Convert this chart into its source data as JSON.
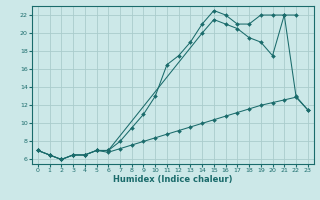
{
  "title": "",
  "xlabel": "Humidex (Indice chaleur)",
  "bg_color": "#cce8e8",
  "grid_color": "#aacccc",
  "line_color": "#1a6b6b",
  "xlim": [
    -0.5,
    23.5
  ],
  "ylim": [
    5.5,
    23
  ],
  "xticks": [
    0,
    1,
    2,
    3,
    4,
    5,
    6,
    7,
    8,
    9,
    10,
    11,
    12,
    13,
    14,
    15,
    16,
    17,
    18,
    19,
    20,
    21,
    22,
    23
  ],
  "yticks": [
    6,
    8,
    10,
    12,
    14,
    16,
    18,
    20,
    22
  ],
  "line1_x": [
    0,
    1,
    2,
    3,
    4,
    5,
    6,
    7,
    8,
    9,
    10,
    11,
    12,
    13,
    14,
    15,
    16,
    17,
    18,
    19,
    20,
    21,
    22
  ],
  "line1_y": [
    7,
    6.5,
    6,
    6.5,
    6.5,
    7,
    7,
    8,
    9.5,
    11,
    13,
    16.5,
    17.5,
    19,
    21,
    22.5,
    22,
    21,
    21,
    22,
    22,
    22,
    22
  ],
  "line2_x": [
    0,
    1,
    2,
    3,
    4,
    5,
    6,
    7,
    8,
    9,
    10,
    11,
    12,
    13,
    14,
    15,
    16,
    17,
    18,
    19,
    20,
    21,
    22,
    23
  ],
  "line2_y": [
    7,
    6.5,
    6,
    6.5,
    6.5,
    7,
    6.8,
    7.2,
    7.6,
    8.0,
    8.4,
    8.8,
    9.2,
    9.6,
    10.0,
    10.4,
    10.8,
    11.2,
    11.6,
    12.0,
    12.3,
    12.6,
    12.9,
    11.5
  ],
  "line3_x": [
    0,
    1,
    2,
    3,
    4,
    5,
    6,
    14,
    15,
    16,
    17,
    18,
    19,
    20,
    21,
    22,
    23
  ],
  "line3_y": [
    7,
    6.5,
    6,
    6.5,
    6.5,
    7,
    7,
    20,
    21.5,
    21,
    20.5,
    19.5,
    19,
    17.5,
    22,
    13,
    11.5
  ]
}
